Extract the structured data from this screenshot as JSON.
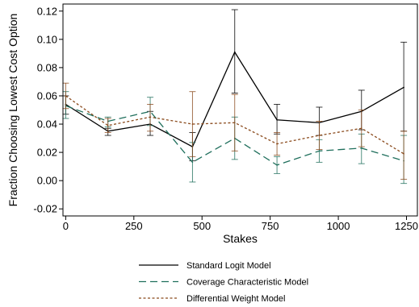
{
  "chart_data": {
    "type": "line",
    "xlabel": "Stakes",
    "ylabel": "Fraction Choosing Lowest Cost Option",
    "xlim": [
      -10,
      1290
    ],
    "ylim": [
      -0.025,
      0.125
    ],
    "x_ticks": [
      0,
      250,
      500,
      750,
      1000,
      1250
    ],
    "y_ticks": [
      -0.02,
      0.0,
      0.02,
      0.04,
      0.06,
      0.08,
      0.1,
      0.12
    ],
    "x_tick_labels": [
      "0",
      "250",
      "500",
      "750",
      "1000",
      "1250"
    ],
    "y_tick_labels": [
      "-0.02",
      "0.00",
      "0.02",
      "0.04",
      "0.06",
      "0.08",
      "0.10",
      "0.12"
    ],
    "x": [
      0,
      155,
      310,
      465,
      620,
      775,
      930,
      1085,
      1240
    ],
    "legend_position": "bottom",
    "series": [
      {
        "name": "Standard Logit Model",
        "color": "#000000",
        "dash": "solid",
        "values": [
          0.054,
          0.035,
          0.04,
          0.024,
          0.091,
          0.043,
          0.041,
          0.049,
          0.066
        ],
        "err_low": [
          0.047,
          0.032,
          0.032,
          0.014,
          0.062,
          0.033,
          0.032,
          0.036,
          0.035
        ],
        "err_high": [
          0.06,
          0.037,
          0.049,
          0.034,
          0.121,
          0.054,
          0.052,
          0.064,
          0.098
        ]
      },
      {
        "name": "Coverage Characteristic Model",
        "color": "#1f6f5c",
        "dash": "long-dash",
        "values": [
          0.053,
          0.042,
          0.049,
          0.013,
          0.03,
          0.011,
          0.021,
          0.023,
          0.014
        ],
        "err_low": [
          0.044,
          0.038,
          0.039,
          -0.001,
          0.015,
          0.005,
          0.013,
          0.012,
          -0.002
        ],
        "err_high": [
          0.063,
          0.045,
          0.059,
          0.027,
          0.045,
          0.017,
          0.029,
          0.033,
          0.032
        ]
      },
      {
        "name": "Differential Weight Model",
        "color": "#8a4a1c",
        "dash": "short-dash",
        "values": [
          0.06,
          0.039,
          0.045,
          0.04,
          0.041,
          0.026,
          0.032,
          0.037,
          0.019
        ],
        "err_low": [
          0.051,
          0.034,
          0.035,
          0.017,
          0.021,
          0.018,
          0.022,
          0.024,
          0.001
        ],
        "err_high": [
          0.069,
          0.044,
          0.054,
          0.063,
          0.061,
          0.034,
          0.042,
          0.05,
          0.035
        ]
      }
    ]
  }
}
